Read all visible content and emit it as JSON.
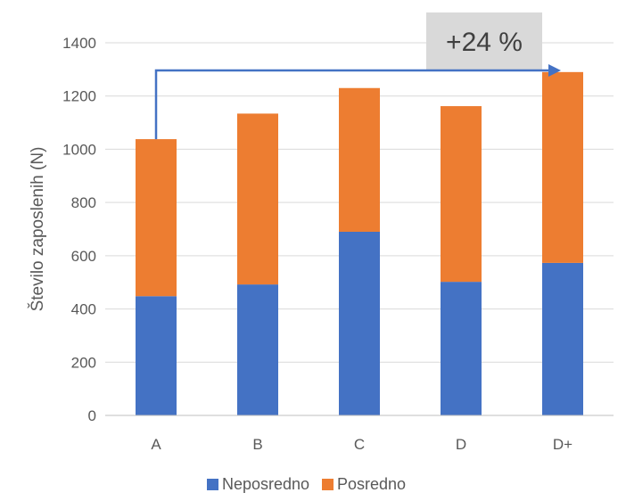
{
  "chart_data": {
    "type": "bar",
    "stacked": true,
    "categories": [
      "A",
      "B",
      "C",
      "D",
      "D+"
    ],
    "series": [
      {
        "name": "Neposredno",
        "color": "#4472C4",
        "values": [
          448,
          492,
          690,
          502,
          573
        ]
      },
      {
        "name": "Posredno",
        "color": "#ED7D31",
        "values": [
          590,
          642,
          540,
          660,
          717
        ]
      }
    ],
    "ylabel": "Število zaposlenih (N)",
    "xlabel": "",
    "ylim": [
      0,
      1400
    ],
    "yticks": [
      0,
      200,
      400,
      600,
      800,
      1000,
      1200,
      1400
    ],
    "grid": true,
    "legend": "bottom",
    "annotation": {
      "text": "+24 %",
      "from_category": "A",
      "to_category": "D+",
      "arrow_color": "#4472C4",
      "box_color": "#D9D9D9"
    }
  }
}
